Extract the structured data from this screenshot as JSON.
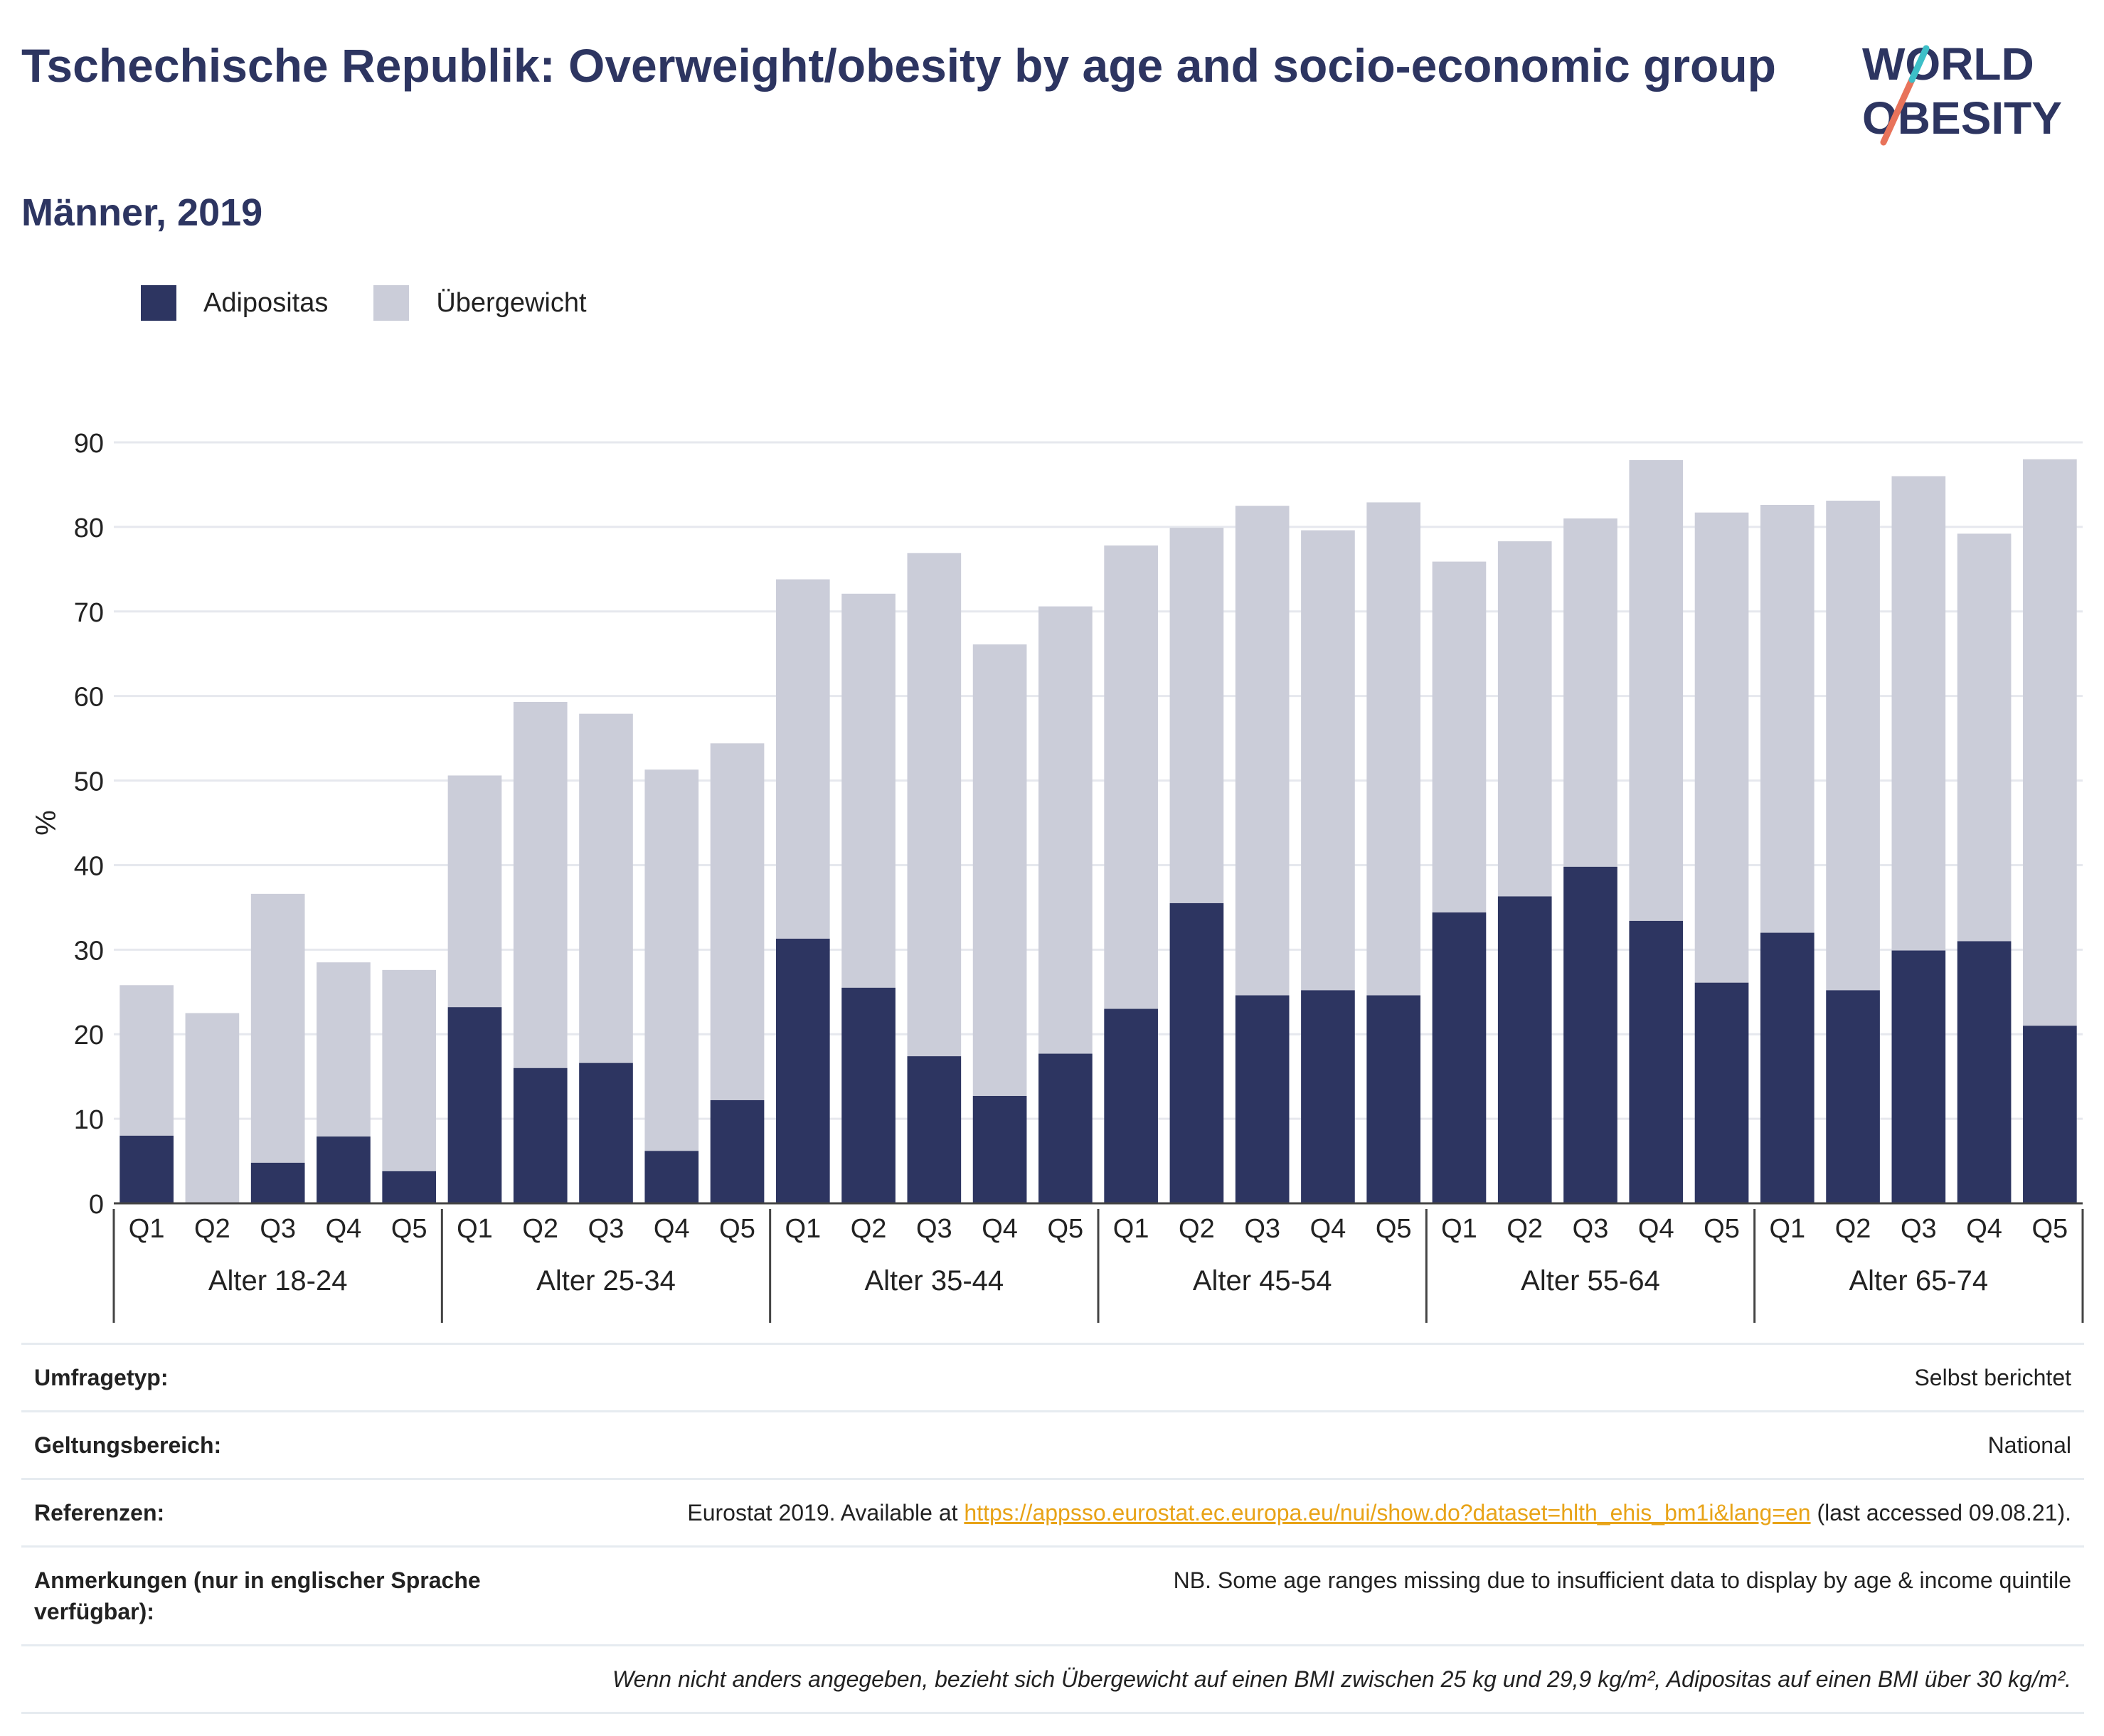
{
  "title": "Tschechische Republik: Overweight/obesity by age and socio-economic group",
  "subtitle": "Männer, 2019",
  "logo": {
    "line1": "WORLD",
    "line2": "OBESITY"
  },
  "colors": {
    "obesity": "#2d3561",
    "overweight": "#cbcdd9",
    "accent_teal": "#3dbfc8",
    "accent_coral": "#e8735a",
    "link": "#e8a317"
  },
  "chart_data": {
    "type": "bar",
    "stacked": true,
    "ylabel": "%",
    "ylim": [
      0,
      90
    ],
    "yticks": [
      0,
      10,
      20,
      30,
      40,
      50,
      60,
      70,
      80,
      90
    ],
    "grid": true,
    "legend_position": "top-left",
    "groups": [
      {
        "label": "Alter 18-24",
        "categories": [
          "Q1",
          "Q2",
          "Q3",
          "Q4",
          "Q5"
        ]
      },
      {
        "label": "Alter 25-34",
        "categories": [
          "Q1",
          "Q2",
          "Q3",
          "Q4",
          "Q5"
        ]
      },
      {
        "label": "Alter 35-44",
        "categories": [
          "Q1",
          "Q2",
          "Q3",
          "Q4",
          "Q5"
        ]
      },
      {
        "label": "Alter 45-54",
        "categories": [
          "Q1",
          "Q2",
          "Q3",
          "Q4",
          "Q5"
        ]
      },
      {
        "label": "Alter 55-64",
        "categories": [
          "Q1",
          "Q2",
          "Q3",
          "Q4",
          "Q5"
        ]
      },
      {
        "label": "Alter 65-74",
        "categories": [
          "Q1",
          "Q2",
          "Q3",
          "Q4",
          "Q5"
        ]
      }
    ],
    "series": [
      {
        "name": "Adipositas",
        "color": "#2d3561",
        "values": [
          8.0,
          0.0,
          4.8,
          7.9,
          3.8,
          23.2,
          16.0,
          16.6,
          6.2,
          12.2,
          31.3,
          25.5,
          17.4,
          12.7,
          17.7,
          23.0,
          35.5,
          24.6,
          25.2,
          24.6,
          34.4,
          36.3,
          39.8,
          33.4,
          26.1,
          32.0,
          25.2,
          29.9,
          31.0,
          21.0
        ]
      },
      {
        "name": "Übergewicht",
        "color": "#cbcdd9",
        "values": [
          17.8,
          22.5,
          31.8,
          20.6,
          23.8,
          27.4,
          43.3,
          41.3,
          45.1,
          42.2,
          42.5,
          46.6,
          59.5,
          53.4,
          52.9,
          54.8,
          44.4,
          57.9,
          54.4,
          58.3,
          41.5,
          42.0,
          41.2,
          54.5,
          55.6,
          50.6,
          57.9,
          56.1,
          48.2,
          67.0
        ]
      }
    ]
  },
  "info": {
    "survey_label": "Umfragetyp:",
    "survey_value": "Selbst berichtet",
    "scope_label": "Geltungsbereich:",
    "scope_value": "National",
    "refs_label": "Referenzen:",
    "refs_prefix": "Eurostat 2019. Available at ",
    "refs_link": "https://appsso.eurostat.ec.europa.eu/nui/show.do?dataset=hlth_ehis_bm1i&lang=en",
    "refs_suffix": " (last accessed 09.08.21).",
    "notes_label": "Anmerkungen (nur in englischer Sprache verfügbar):",
    "notes_value": "NB. Some age ranges missing due to insufficient data to display by age & income quintile",
    "footnote": "Wenn nicht anders angegeben, bezieht sich Übergewicht auf einen BMI zwischen 25 kg und 29,9 kg/m², Adipositas auf einen BMI über 30 kg/m²."
  }
}
